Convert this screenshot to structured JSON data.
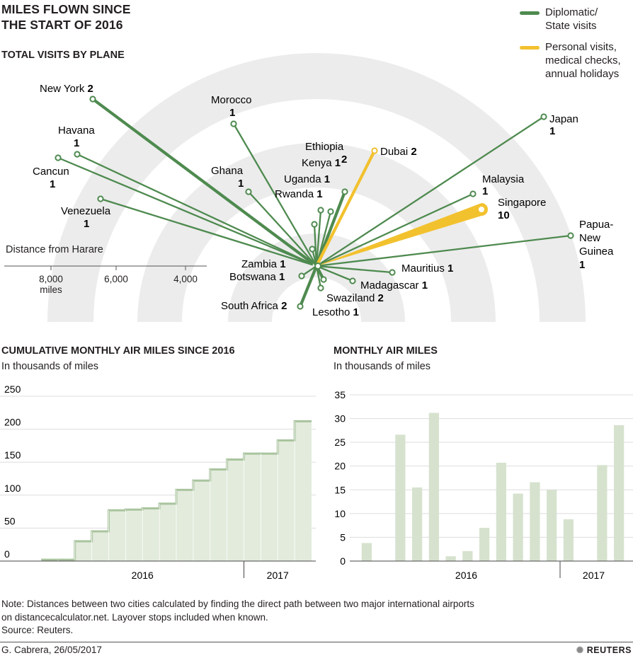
{
  "header": {
    "title_line1": "MILES FLOWN SINCE",
    "title_line2": "THE START OF 2016",
    "subtitle": "TOTAL VISITS BY PLANE"
  },
  "legend": {
    "diplomatic": {
      "label_line1": "Diplomatic/",
      "label_line2": "State visits",
      "color": "#4e8a4f"
    },
    "personal": {
      "label_line1": "Personal visits,",
      "label_line2": "medical checks,",
      "label_line3": "annual holidays",
      "color": "#f2c12e"
    }
  },
  "chart_data": [
    {
      "type": "radial",
      "title": "TOTAL VISITS BY PLANE",
      "axis_label": "Distance from Harare",
      "axis_ticks": [
        "8,000",
        "6,000",
        "4,000"
      ],
      "axis_unit": "miles",
      "destinations": [
        {
          "name": "New York",
          "visits": 2,
          "type": "diplomatic"
        },
        {
          "name": "Morocco",
          "visits": 1,
          "type": "diplomatic"
        },
        {
          "name": "Havana",
          "visits": 1,
          "type": "diplomatic"
        },
        {
          "name": "Cancun",
          "visits": 1,
          "type": "diplomatic"
        },
        {
          "name": "Venezuela",
          "visits": 1,
          "type": "diplomatic"
        },
        {
          "name": "Ghana",
          "visits": 1,
          "type": "diplomatic"
        },
        {
          "name": "Ethiopia",
          "visits": 2,
          "type": "diplomatic"
        },
        {
          "name": "Kenya",
          "visits": 1,
          "type": "diplomatic"
        },
        {
          "name": "Uganda",
          "visits": 1,
          "type": "diplomatic"
        },
        {
          "name": "Rwanda",
          "visits": 1,
          "type": "diplomatic"
        },
        {
          "name": "Dubai",
          "visits": 2,
          "type": "personal"
        },
        {
          "name": "Japan",
          "visits": 1,
          "type": "diplomatic"
        },
        {
          "name": "Malaysia",
          "visits": 1,
          "type": "diplomatic"
        },
        {
          "name": "Singapore",
          "visits": 10,
          "type": "personal"
        },
        {
          "name": "Papua-New Guinea",
          "visits": 1,
          "type": "diplomatic"
        },
        {
          "name": "Zambia",
          "visits": 1,
          "type": "diplomatic"
        },
        {
          "name": "Botswana",
          "visits": 1,
          "type": "diplomatic"
        },
        {
          "name": "South Africa",
          "visits": 2,
          "type": "diplomatic"
        },
        {
          "name": "Lesotho",
          "visits": 1,
          "type": "diplomatic"
        },
        {
          "name": "Swaziland",
          "visits": 2,
          "type": "diplomatic"
        },
        {
          "name": "Madagascar",
          "visits": 1,
          "type": "diplomatic"
        },
        {
          "name": "Mauritius",
          "visits": 1,
          "type": "diplomatic"
        }
      ]
    },
    {
      "type": "area",
      "title": "CUMULATIVE MONTHLY AIR MILES SINCE 2016",
      "subtitle": "In thousands of miles",
      "yticks": [
        0,
        50,
        100,
        150,
        200,
        250
      ],
      "ylim": [
        0,
        250
      ],
      "year_labels": [
        "2016",
        "2017"
      ],
      "values": [
        2,
        2,
        30,
        45,
        77,
        78,
        80,
        87,
        108,
        122,
        139,
        154,
        163,
        163,
        183,
        212
      ]
    },
    {
      "type": "bar",
      "title": "MONTHLY AIR MILES",
      "subtitle": "In thousands of miles",
      "yticks": [
        0,
        5,
        10,
        15,
        20,
        25,
        30,
        35
      ],
      "ylim": [
        0,
        35
      ],
      "year_labels": [
        "2016",
        "2017"
      ],
      "values": [
        3.8,
        0,
        26.6,
        15.5,
        31.2,
        1,
        2.1,
        7,
        20.7,
        14.2,
        16.6,
        15,
        8.8,
        0,
        20.2,
        28.6
      ]
    }
  ],
  "note": {
    "line1": "Note: Distances between two cities calculated by finding the direct path between two major international airports",
    "line2": "on distancecalculator.net. Layover stops included when known.",
    "source": "Source: Reuters."
  },
  "footer": {
    "credit": "G. Cabrera, 26/05/2017",
    "brand": "REUTERS"
  }
}
